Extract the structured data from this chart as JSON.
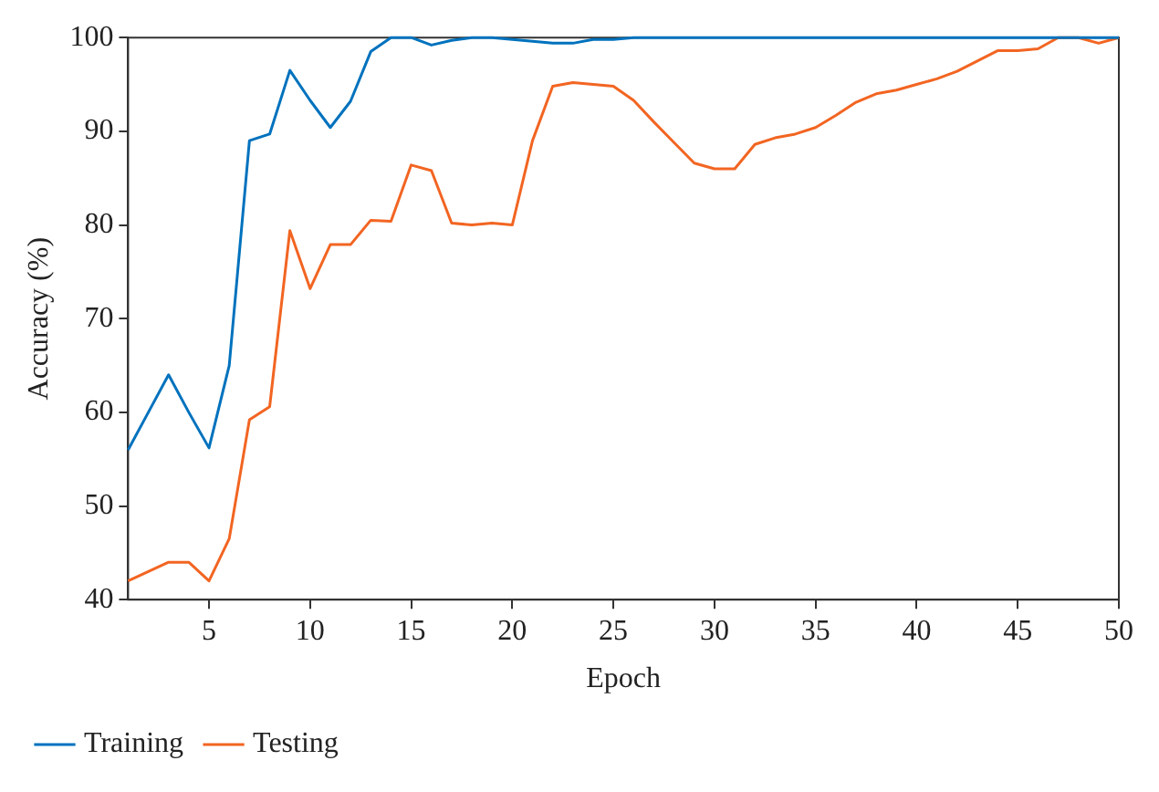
{
  "chart_data": {
    "type": "line",
    "xlabel": "Epoch",
    "ylabel": "Accuracy (%)",
    "x": [
      1,
      2,
      3,
      4,
      5,
      6,
      7,
      8,
      9,
      10,
      11,
      12,
      13,
      14,
      15,
      16,
      17,
      18,
      19,
      20,
      21,
      22,
      23,
      24,
      25,
      26,
      27,
      28,
      29,
      30,
      31,
      32,
      33,
      34,
      35,
      36,
      37,
      38,
      39,
      40,
      41,
      42,
      43,
      44,
      45,
      46,
      47,
      48,
      49,
      50
    ],
    "series": [
      {
        "name": "Training",
        "color": "#0072bd",
        "values": [
          56,
          60,
          64,
          60,
          56.2,
          65,
          89,
          89.7,
          96.5,
          93.3,
          90.4,
          93.2,
          98.5,
          100,
          100,
          99.2,
          99.7,
          100,
          100,
          99.8,
          99.6,
          99.4,
          99.4,
          99.8,
          99.8,
          100,
          100,
          100,
          100,
          100,
          100,
          100,
          100,
          100,
          100,
          100,
          100,
          100,
          100,
          100,
          100,
          100,
          100,
          100,
          100,
          100,
          100,
          100,
          100,
          100
        ]
      },
      {
        "name": "Testing",
        "color": "#f26522",
        "values": [
          42,
          43,
          44,
          44,
          42,
          46.5,
          59.2,
          60.6,
          79.4,
          73.2,
          77.9,
          77.9,
          80.5,
          80.4,
          86.4,
          85.8,
          80.2,
          80,
          80.2,
          80,
          89,
          94.8,
          95.2,
          95,
          94.8,
          93.3,
          91,
          88.8,
          86.6,
          86,
          86,
          88.6,
          89.3,
          89.7,
          90.4,
          91.7,
          93.1,
          94,
          94.4,
          95,
          95.6,
          96.4,
          97.5,
          98.6,
          98.6,
          98.8,
          100,
          100,
          99.4,
          100
        ]
      }
    ],
    "xlim": [
      1,
      50
    ],
    "xticks": [
      5,
      10,
      15,
      20,
      25,
      30,
      35,
      40,
      45,
      50
    ],
    "ylim": [
      40,
      100
    ],
    "yticks": [
      40,
      50,
      60,
      70,
      80,
      90,
      100
    ],
    "grid": false,
    "legend": "bottom left",
    "marker": "none",
    "line_style": "solid"
  }
}
